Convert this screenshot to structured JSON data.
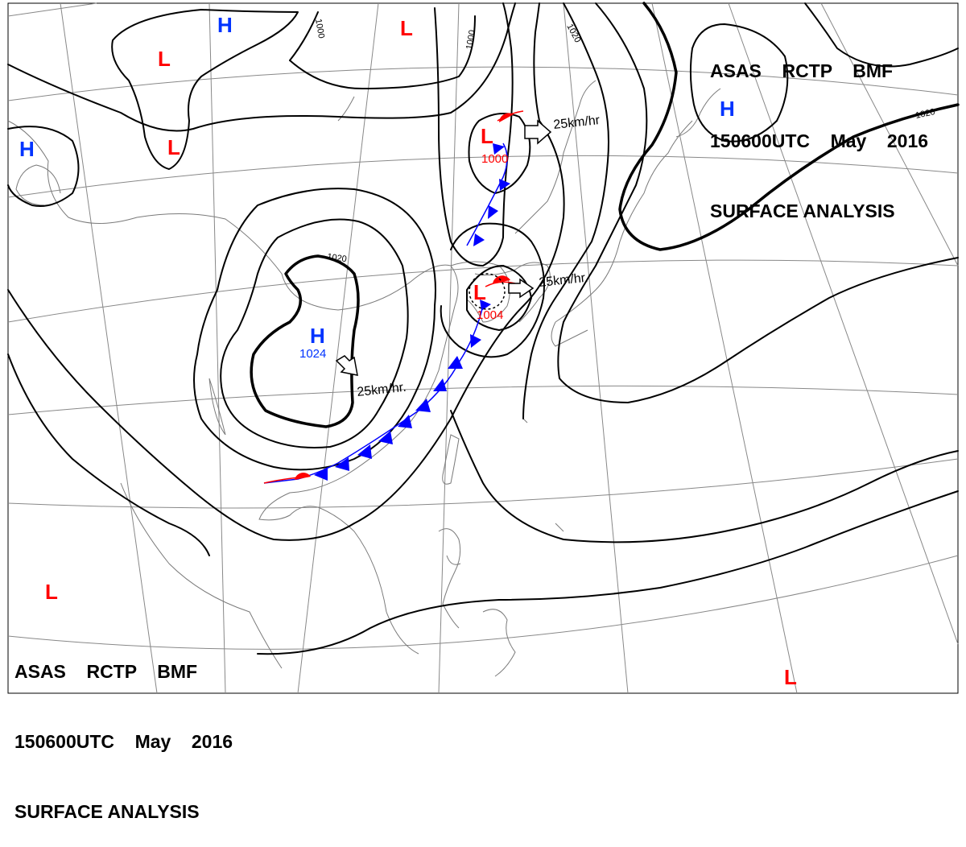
{
  "header_top_right": {
    "line1": "ASAS    RCTP    BMF",
    "line2": "150600UTC    May    2016",
    "line3": "SURFACE ANALYSIS"
  },
  "header_bottom_left": {
    "line1": "ASAS    RCTP    BMF",
    "line2": "150600UTC    May    2016",
    "line3": "SURFACE ANALYSIS"
  },
  "symbols": {
    "high_letter": "H",
    "low_letter": "L"
  },
  "colors": {
    "high": "#0033ff",
    "low": "#ff0000",
    "cold_front": "#0000ff",
    "warm_front": "#ff0000",
    "isobar": "#000000",
    "coastline": "#808080",
    "grid": "#808080"
  },
  "centers": {
    "high_main_value": "1024",
    "low_north_value": "1000",
    "low_south_value": "1004"
  },
  "motions": {
    "high_main": "25km/hr.",
    "low_north": "25km/hr",
    "low_south": "25km/hr."
  },
  "isobar_labels": {
    "l1000_a": "1000",
    "l1000_b": "1000",
    "l1020_a": "1020",
    "l1020_b": "1020",
    "l1020_c": "1020"
  }
}
